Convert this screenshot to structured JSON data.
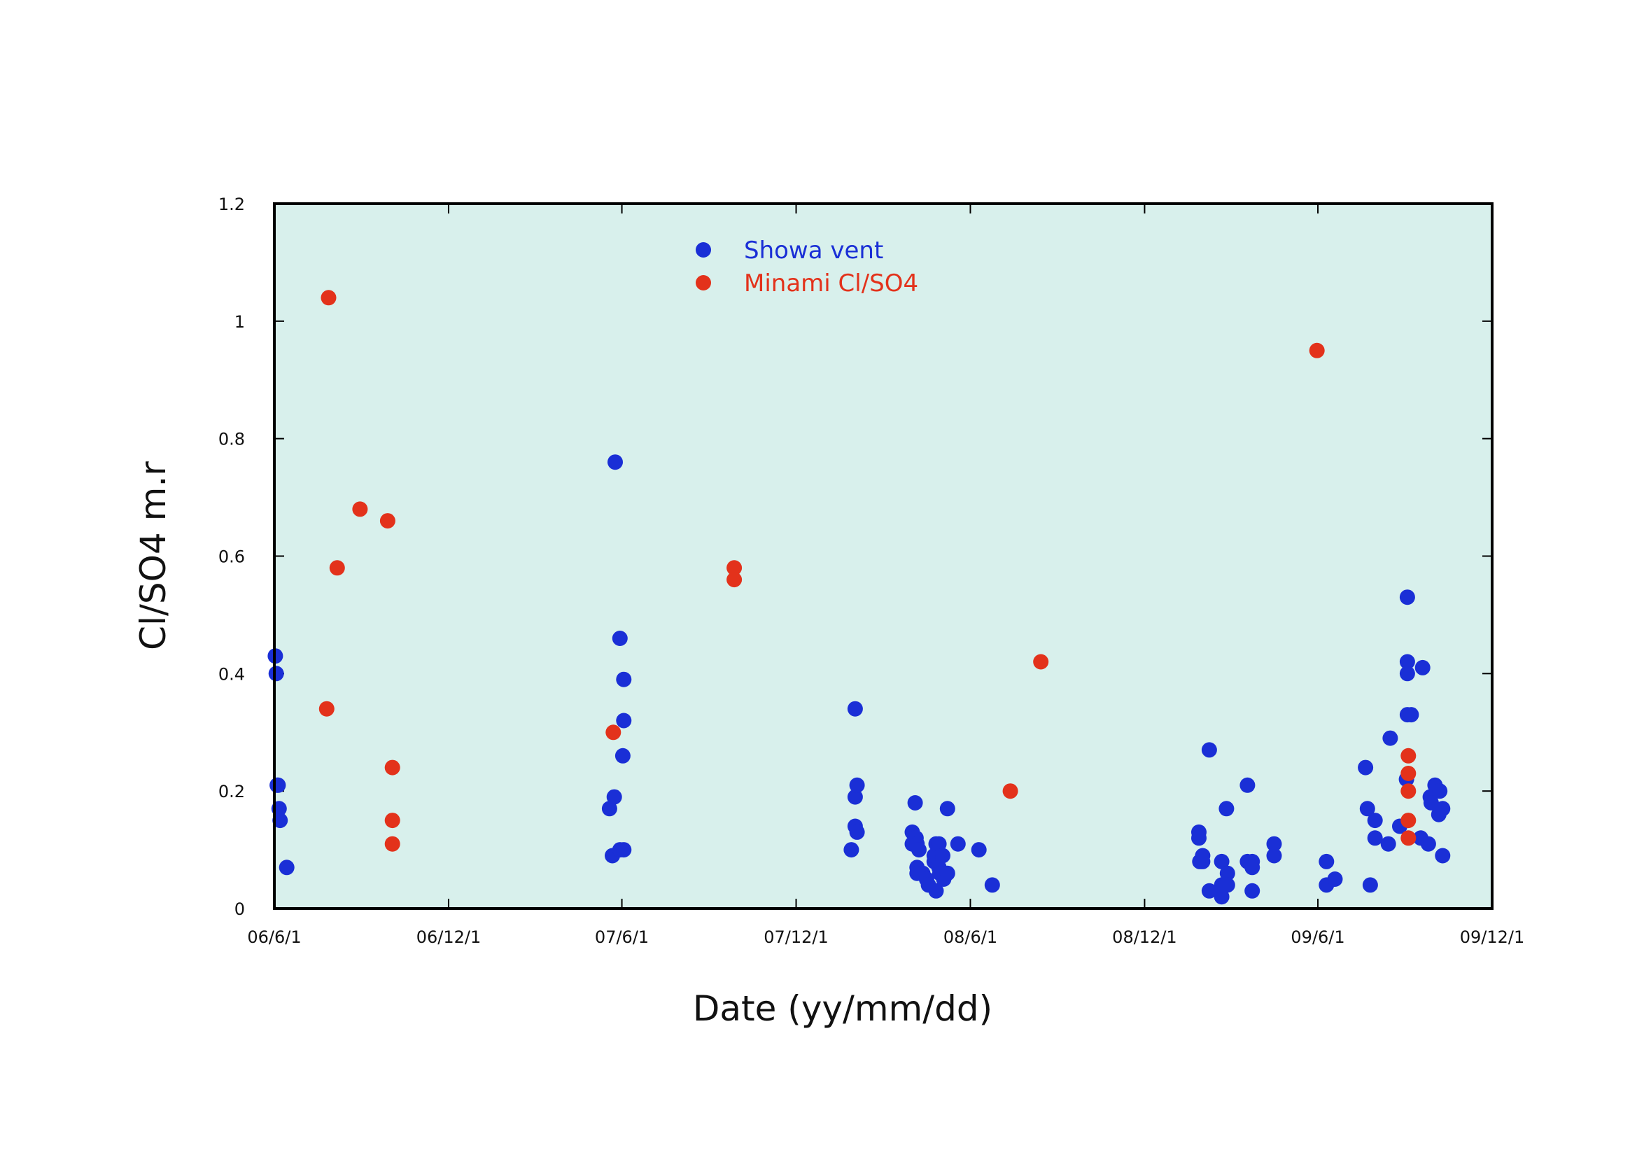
{
  "chart_data": {
    "type": "scatter",
    "title": "",
    "xlabel": "Date (yy/mm/dd)",
    "ylabel": "Cl/SO4 m.r",
    "x_ticks": [
      "06/6/1",
      "06/12/1",
      "07/6/1",
      "07/12/1",
      "08/6/1",
      "08/12/1",
      "09/6/1",
      "09/12/1"
    ],
    "y_ticks": [
      "0",
      "0.2",
      "0.4",
      "0.6",
      "0.8",
      "1",
      "1.2"
    ],
    "xlim": [
      "06/6/1",
      "09/12/1"
    ],
    "ylim": [
      0,
      1.2
    ],
    "grid": false,
    "legend_position": "top-center",
    "plot_background": "#d8f0ec",
    "series": [
      {
        "name": "Showa vent",
        "color": "#1a2fd6",
        "points": [
          [
            "06/6/2",
            0.43
          ],
          [
            "06/6/3",
            0.4
          ],
          [
            "06/6/4",
            0.21
          ],
          [
            "06/6/5",
            0.21
          ],
          [
            "06/6/6",
            0.17
          ],
          [
            "06/6/7",
            0.15
          ],
          [
            "06/6/14",
            0.07
          ],
          [
            "07/5/19",
            0.17
          ],
          [
            "07/5/22",
            0.09
          ],
          [
            "07/5/24",
            0.19
          ],
          [
            "07/5/25",
            0.76
          ],
          [
            "07/5/30",
            0.46
          ],
          [
            "07/5/30",
            0.1
          ],
          [
            "07/6/3",
            0.1
          ],
          [
            "07/6/3",
            0.39
          ],
          [
            "07/6/3",
            0.32
          ],
          [
            "07/6/2",
            0.26
          ],
          [
            "08/1/28",
            0.1
          ],
          [
            "08/2/1",
            0.34
          ],
          [
            "08/2/1",
            0.19
          ],
          [
            "08/2/1",
            0.14
          ],
          [
            "08/2/3",
            0.21
          ],
          [
            "08/2/3",
            0.13
          ],
          [
            "08/4/1",
            0.13
          ],
          [
            "08/4/1",
            0.11
          ],
          [
            "08/4/4",
            0.18
          ],
          [
            "08/4/5",
            0.12
          ],
          [
            "08/4/6",
            0.11
          ],
          [
            "08/4/8",
            0.1
          ],
          [
            "08/4/6",
            0.07
          ],
          [
            "08/4/6",
            0.06
          ],
          [
            "08/4/12",
            0.06
          ],
          [
            "08/4/16",
            0.05
          ],
          [
            "08/4/18",
            0.04
          ],
          [
            "08/4/26",
            0.03
          ],
          [
            "08/4/24",
            0.08
          ],
          [
            "08/4/24",
            0.09
          ],
          [
            "08/4/26",
            0.11
          ],
          [
            "08/4/29",
            0.11
          ],
          [
            "08/4/29",
            0.07
          ],
          [
            "08/4/30",
            0.06
          ],
          [
            "08/5/3",
            0.09
          ],
          [
            "08/5/4",
            0.05
          ],
          [
            "08/5/8",
            0.06
          ],
          [
            "08/5/8",
            0.17
          ],
          [
            "08/5/19",
            0.11
          ],
          [
            "08/6/10",
            0.1
          ],
          [
            "08/6/24",
            0.04
          ],
          [
            "09/1/27",
            0.13
          ],
          [
            "09/1/27",
            0.12
          ],
          [
            "09/1/28",
            0.08
          ],
          [
            "09/1/31",
            0.08
          ],
          [
            "09/1/31",
            0.09
          ],
          [
            "09/2/7",
            0.27
          ],
          [
            "09/2/7",
            0.03
          ],
          [
            "09/2/20",
            0.02
          ],
          [
            "09/2/20",
            0.04
          ],
          [
            "09/2/20",
            0.08
          ],
          [
            "09/2/25",
            0.17
          ],
          [
            "09/2/26",
            0.06
          ],
          [
            "09/2/26",
            0.04
          ],
          [
            "09/3/19",
            0.21
          ],
          [
            "09/3/19",
            0.08
          ],
          [
            "09/3/24",
            0.08
          ],
          [
            "09/3/24",
            0.07
          ],
          [
            "09/3/24",
            0.03
          ],
          [
            "09/4/16",
            0.09
          ],
          [
            "09/4/16",
            0.11
          ],
          [
            "09/6/10",
            0.08
          ],
          [
            "09/6/10",
            0.04
          ],
          [
            "09/6/19",
            0.05
          ],
          [
            "09/7/21",
            0.24
          ],
          [
            "09/7/23",
            0.17
          ],
          [
            "09/7/26",
            0.04
          ],
          [
            "09/7/31",
            0.15
          ],
          [
            "09/7/31",
            0.12
          ],
          [
            "09/8/14",
            0.11
          ],
          [
            "09/8/16",
            0.29
          ],
          [
            "09/8/26",
            0.14
          ],
          [
            "09/9/2",
            0.22
          ],
          [
            "09/9/3",
            0.53
          ],
          [
            "09/9/3",
            0.42
          ],
          [
            "09/9/3",
            0.4
          ],
          [
            "09/9/3",
            0.33
          ],
          [
            "09/9/7",
            0.33
          ],
          [
            "09/9/17",
            0.12
          ],
          [
            "09/9/19",
            0.41
          ],
          [
            "09/9/25",
            0.11
          ],
          [
            "09/9/27",
            0.19
          ],
          [
            "09/9/28",
            0.18
          ],
          [
            "09/10/2",
            0.21
          ],
          [
            "09/10/6",
            0.16
          ],
          [
            "09/10/7",
            0.2
          ],
          [
            "09/10/10",
            0.17
          ],
          [
            "09/10/10",
            0.09
          ]
        ]
      },
      {
        "name": "Minami Cl/SO4",
        "color": "#e3321b",
        "points": [
          [
            "06/7/26",
            0.34
          ],
          [
            "06/7/28",
            1.04
          ],
          [
            "06/8/6",
            0.58
          ],
          [
            "06/8/30",
            0.68
          ],
          [
            "06/9/28",
            0.66
          ],
          [
            "06/10/3",
            0.24
          ],
          [
            "06/10/3",
            0.15
          ],
          [
            "06/10/3",
            0.11
          ],
          [
            "07/5/23",
            0.3
          ],
          [
            "07/9/27",
            0.58
          ],
          [
            "07/9/27",
            0.56
          ],
          [
            "08/7/13",
            0.2
          ],
          [
            "08/8/14",
            0.42
          ],
          [
            "09/5/31",
            0.95
          ],
          [
            "09/9/4",
            0.26
          ],
          [
            "09/9/4",
            0.23
          ],
          [
            "09/9/4",
            0.2
          ],
          [
            "09/9/4",
            0.15
          ],
          [
            "09/9/4",
            0.12
          ]
        ]
      }
    ]
  }
}
